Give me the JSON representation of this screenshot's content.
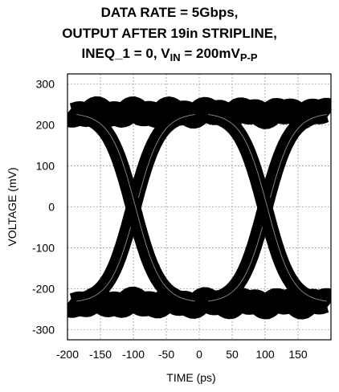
{
  "title": {
    "line1": "DATA RATE = 5Gbps,",
    "line2": "OUTPUT AFTER 19in STRIPLINE,",
    "line3_prefix": "INEQ_1 = 0, V",
    "line3_sub1": "IN",
    "line3_mid": " = 200mV",
    "line3_sub2": "P-P"
  },
  "chart_data": {
    "type": "line",
    "subtype": "eye-diagram",
    "title": "DATA RATE = 5Gbps, OUTPUT AFTER 19in STRIPLINE, INEQ_1 = 0, VIN = 200mVP-P",
    "xlabel": "TIME (ps)",
    "ylabel": "VOLTAGE (mV)",
    "xlim": [
      -200,
      200
    ],
    "ylim": [
      -325,
      325
    ],
    "x_ticks": [
      -200,
      -150,
      -100,
      -50,
      0,
      50,
      100,
      150
    ],
    "x_tick_labels": [
      "-200",
      "-150",
      "-100",
      "-50",
      "0",
      "50",
      "100",
      "150"
    ],
    "y_ticks": [
      300,
      200,
      100,
      0,
      -100,
      -200,
      -300
    ],
    "y_tick_labels": [
      "300",
      "200",
      "100",
      "0",
      "-100",
      "-200",
      "-300"
    ],
    "grid": true,
    "eye": {
      "high_level_mV": 230,
      "low_level_mV": -235,
      "band_thickness_mV": 60,
      "crossing_time_ps": [
        -100,
        100
      ],
      "crossing_voltage_mV": 0,
      "unit_interval_ps": 200
    },
    "trace_color": "#000000"
  }
}
